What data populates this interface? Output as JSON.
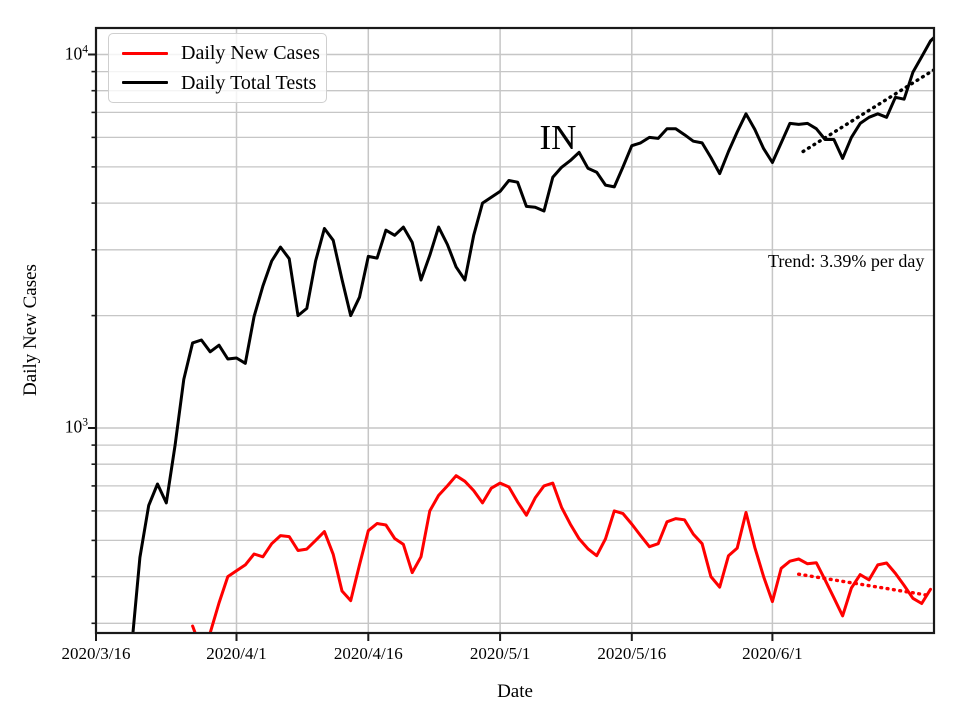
{
  "chart_data": {
    "type": "line",
    "title": "IN",
    "xlabel": "Date",
    "ylabel": "Daily New Cases",
    "annotation": "Trend: 3.39% per day",
    "x_unit": "days since 2020/3/16",
    "xlim_days": [
      0,
      95.4
    ],
    "ylim": [
      283,
      11700
    ],
    "y_scale": "log",
    "grid": true,
    "x_ticks": [
      {
        "label": "2020/3/16",
        "day": 0
      },
      {
        "label": "2020/4/1",
        "day": 16
      },
      {
        "label": "2020/4/16",
        "day": 31
      },
      {
        "label": "2020/5/1",
        "day": 46
      },
      {
        "label": "2020/5/16",
        "day": 61
      },
      {
        "label": "2020/6/1",
        "day": 77
      }
    ],
    "y_ticks_major": [
      {
        "value": 1000,
        "base": "10",
        "exp": "3"
      },
      {
        "value": 10000,
        "base": "10",
        "exp": "4"
      }
    ],
    "y_ticks_minor": [
      300,
      400,
      500,
      600,
      700,
      800,
      900,
      2000,
      3000,
      4000,
      5000,
      6000,
      7000,
      8000,
      9000
    ],
    "legend": [
      {
        "label": "Daily New Cases",
        "color": "#ff0000"
      },
      {
        "label": "Daily Total Tests",
        "color": "#000000"
      }
    ],
    "series": [
      {
        "name": "Daily New Cases",
        "color": "#ff0000",
        "line_style": "solid",
        "points": [
          [
            11,
            295
          ],
          [
            12,
            255
          ],
          [
            13,
            283
          ],
          [
            14,
            340
          ],
          [
            15,
            400
          ],
          [
            16,
            415
          ],
          [
            17,
            430
          ],
          [
            18,
            460
          ],
          [
            19,
            452
          ],
          [
            20,
            490
          ],
          [
            21,
            515
          ],
          [
            22,
            512
          ],
          [
            23,
            470
          ],
          [
            24,
            474
          ],
          [
            25,
            500
          ],
          [
            26,
            528
          ],
          [
            27,
            459
          ],
          [
            28,
            366
          ],
          [
            29,
            345
          ],
          [
            30,
            430
          ],
          [
            31,
            531
          ],
          [
            32,
            555
          ],
          [
            33,
            550
          ],
          [
            34,
            506
          ],
          [
            35,
            488
          ],
          [
            36,
            410
          ],
          [
            37,
            452
          ],
          [
            38,
            600
          ],
          [
            39,
            660
          ],
          [
            40,
            700
          ],
          [
            41,
            745
          ],
          [
            42,
            720
          ],
          [
            43,
            680
          ],
          [
            44,
            630
          ],
          [
            45,
            690
          ],
          [
            46,
            712
          ],
          [
            47,
            695
          ],
          [
            48,
            634
          ],
          [
            49,
            584
          ],
          [
            50,
            650
          ],
          [
            51,
            700
          ],
          [
            52,
            712
          ],
          [
            53,
            613
          ],
          [
            54,
            553
          ],
          [
            55,
            505
          ],
          [
            56,
            475
          ],
          [
            57,
            455
          ],
          [
            58,
            505
          ],
          [
            59,
            600
          ],
          [
            60,
            590
          ],
          [
            61,
            553
          ],
          [
            62,
            515
          ],
          [
            63,
            481
          ],
          [
            64,
            490
          ],
          [
            65,
            561
          ],
          [
            66,
            572
          ],
          [
            67,
            568
          ],
          [
            68,
            520
          ],
          [
            69,
            490
          ],
          [
            70,
            400
          ],
          [
            71,
            375
          ],
          [
            72,
            455
          ],
          [
            73,
            477
          ],
          [
            74,
            594
          ],
          [
            75,
            479
          ],
          [
            76,
            400
          ],
          [
            77,
            343
          ],
          [
            78,
            421
          ],
          [
            79,
            440
          ],
          [
            80,
            446
          ],
          [
            81,
            433
          ],
          [
            82,
            436
          ],
          [
            83,
            392
          ],
          [
            84,
            351
          ],
          [
            85,
            314
          ],
          [
            86,
            373
          ],
          [
            87,
            405
          ],
          [
            88,
            392
          ],
          [
            89,
            430
          ],
          [
            90,
            435
          ],
          [
            91,
            408
          ],
          [
            92,
            379
          ],
          [
            93,
            350
          ],
          [
            94,
            339
          ],
          [
            95,
            370
          ]
        ]
      },
      {
        "name": "Daily Total Tests",
        "color": "#000000",
        "line_style": "solid",
        "points": [
          [
            4,
            250
          ],
          [
            5,
            450
          ],
          [
            6,
            620
          ],
          [
            7,
            708
          ],
          [
            8,
            630
          ],
          [
            9,
            900
          ],
          [
            10,
            1350
          ],
          [
            11,
            1690
          ],
          [
            12,
            1720
          ],
          [
            13,
            1600
          ],
          [
            14,
            1666
          ],
          [
            15,
            1530
          ],
          [
            16,
            1540
          ],
          [
            17,
            1490
          ],
          [
            18,
            1990
          ],
          [
            19,
            2400
          ],
          [
            20,
            2800
          ],
          [
            21,
            3050
          ],
          [
            22,
            2840
          ],
          [
            23,
            2000
          ],
          [
            24,
            2090
          ],
          [
            25,
            2800
          ],
          [
            26,
            3420
          ],
          [
            27,
            3180
          ],
          [
            28,
            2500
          ],
          [
            29,
            2000
          ],
          [
            30,
            2240
          ],
          [
            31,
            2880
          ],
          [
            32,
            2850
          ],
          [
            33,
            3385
          ],
          [
            34,
            3280
          ],
          [
            35,
            3450
          ],
          [
            36,
            3140
          ],
          [
            37,
            2490
          ],
          [
            38,
            2900
          ],
          [
            39,
            3450
          ],
          [
            40,
            3100
          ],
          [
            41,
            2700
          ],
          [
            42,
            2490
          ],
          [
            43,
            3280
          ],
          [
            44,
            4000
          ],
          [
            45,
            4150
          ],
          [
            46,
            4300
          ],
          [
            47,
            4600
          ],
          [
            48,
            4550
          ],
          [
            49,
            3920
          ],
          [
            50,
            3900
          ],
          [
            51,
            3810
          ],
          [
            52,
            4690
          ],
          [
            53,
            4990
          ],
          [
            54,
            5200
          ],
          [
            55,
            5470
          ],
          [
            56,
            4960
          ],
          [
            57,
            4840
          ],
          [
            58,
            4470
          ],
          [
            59,
            4420
          ],
          [
            60,
            5000
          ],
          [
            61,
            5700
          ],
          [
            62,
            5800
          ],
          [
            63,
            6000
          ],
          [
            64,
            5960
          ],
          [
            65,
            6330
          ],
          [
            66,
            6330
          ],
          [
            67,
            6100
          ],
          [
            68,
            5860
          ],
          [
            69,
            5800
          ],
          [
            70,
            5300
          ],
          [
            71,
            4800
          ],
          [
            72,
            5500
          ],
          [
            73,
            6200
          ],
          [
            74,
            6940
          ],
          [
            75,
            6300
          ],
          [
            76,
            5600
          ],
          [
            77,
            5140
          ],
          [
            78,
            5800
          ],
          [
            79,
            6540
          ],
          [
            80,
            6500
          ],
          [
            81,
            6540
          ],
          [
            82,
            6330
          ],
          [
            83,
            5920
          ],
          [
            84,
            5920
          ],
          [
            85,
            5270
          ],
          [
            86,
            6000
          ],
          [
            87,
            6540
          ],
          [
            88,
            6790
          ],
          [
            89,
            6940
          ],
          [
            90,
            6790
          ],
          [
            91,
            7680
          ],
          [
            92,
            7590
          ],
          [
            93,
            8960
          ],
          [
            94,
            9860
          ],
          [
            95,
            10870
          ],
          [
            95.4,
            11100
          ]
        ]
      },
      {
        "name": "Daily Total Tests trend (3.39% per day)",
        "color": "#000000",
        "line_style": "dotted",
        "points": [
          [
            80.5,
            5500
          ],
          [
            95.4,
            9100
          ]
        ]
      },
      {
        "name": "Daily New Cases trend",
        "color": "#ff0000",
        "line_style": "dotted",
        "points": [
          [
            80,
            406
          ],
          [
            94.6,
            357
          ]
        ]
      }
    ]
  },
  "colors": {
    "grid": "#c6c6c6",
    "spine": "#1a1a1a",
    "tick": "#1a1a1a"
  }
}
